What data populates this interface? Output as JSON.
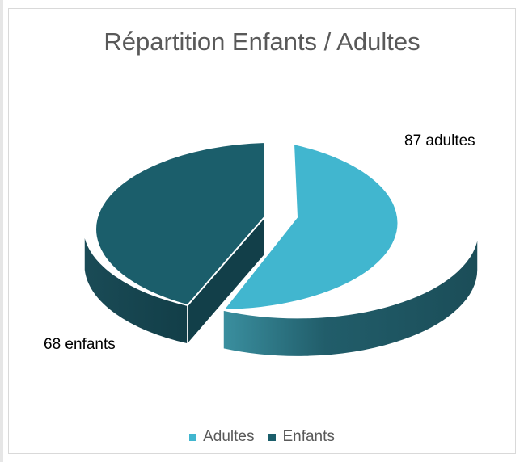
{
  "chart_data": {
    "type": "pie",
    "title": "Répartition Enfants / Adultes",
    "slices": [
      {
        "name": "Adultes",
        "value": 87,
        "label": "87 adultes",
        "color": "#41b6cf",
        "side_color": "#1d5f6c"
      },
      {
        "name": "Enfants",
        "value": 68,
        "label": "68 enfants",
        "color": "#1b5e6b",
        "side_color": "#123f49"
      }
    ],
    "style": "3d-exploded",
    "legend_position": "bottom"
  }
}
